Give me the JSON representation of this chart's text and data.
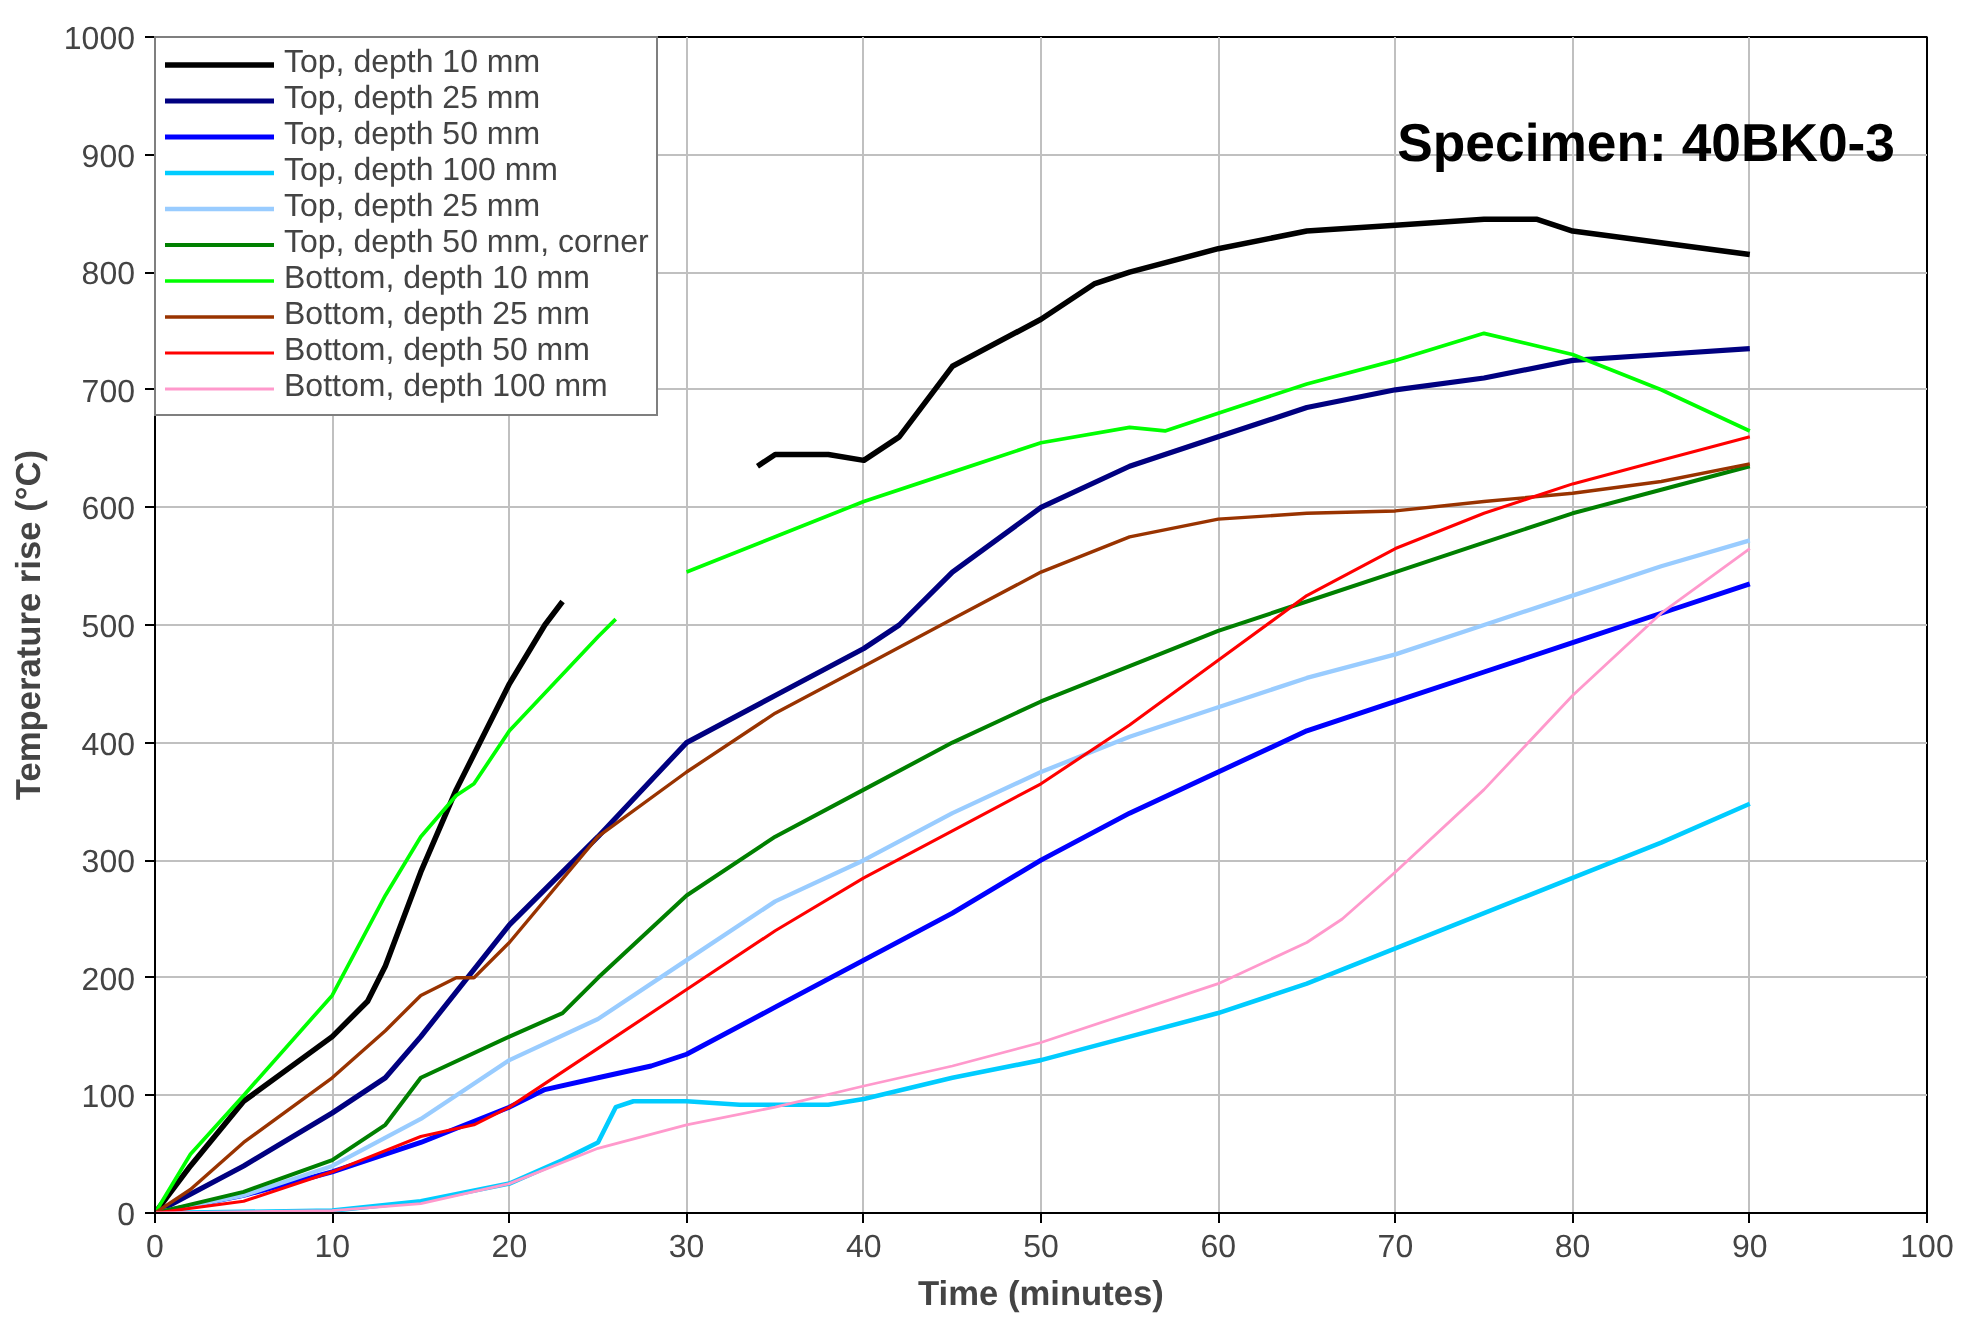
{
  "chart_data": {
    "type": "line",
    "xlabel": "Time (minutes)",
    "ylabel": "Temperature rise (°C)",
    "annotations": [
      "Specimen: 40BK0-3"
    ],
    "xlim": [
      0,
      100
    ],
    "ylim": [
      0,
      1000
    ],
    "xticks": [
      0,
      10,
      20,
      30,
      40,
      50,
      60,
      70,
      80,
      90,
      100
    ],
    "yticks": [
      0,
      100,
      200,
      300,
      400,
      500,
      600,
      700,
      800,
      900,
      1000
    ],
    "grid": true,
    "legend": "top left",
    "marker": "none",
    "line_style": "solid",
    "series": [
      {
        "name": "Top, depth 10 mm",
        "color": "#000000",
        "x": [
          0,
          2,
          5,
          10,
          12,
          13,
          15,
          17,
          20,
          22,
          23,
          27,
          34,
          35,
          38,
          40,
          42,
          45,
          50,
          53,
          55,
          60,
          65,
          70,
          75,
          78,
          80,
          85,
          90
        ],
        "values": [
          0,
          40,
          95,
          150,
          180,
          210,
          290,
          360,
          450,
          500,
          520,
          null,
          635,
          645,
          645,
          640,
          660,
          720,
          760,
          790,
          800,
          820,
          835,
          840,
          845,
          845,
          835,
          825,
          815
        ]
      },
      {
        "name": "Top, depth 25 mm",
        "color": "#000080",
        "x": [
          0,
          5,
          10,
          13,
          15,
          20,
          25,
          30,
          35,
          40,
          42,
          45,
          50,
          55,
          60,
          65,
          70,
          75,
          80,
          85,
          90
        ],
        "values": [
          0,
          40,
          85,
          115,
          150,
          245,
          320,
          400,
          440,
          480,
          500,
          545,
          600,
          635,
          660,
          685,
          700,
          710,
          725,
          730,
          735
        ]
      },
      {
        "name": "Top, depth 50 mm",
        "color": "#0000ff",
        "x": [
          0,
          5,
          10,
          15,
          20,
          22,
          25,
          28,
          30,
          35,
          40,
          45,
          50,
          55,
          60,
          65,
          70,
          75,
          80,
          85,
          90
        ],
        "values": [
          0,
          15,
          35,
          60,
          90,
          105,
          115,
          125,
          135,
          175,
          215,
          255,
          300,
          340,
          375,
          410,
          435,
          460,
          485,
          510,
          535
        ]
      },
      {
        "name": "Top, depth 100 mm",
        "color": "#00ccff",
        "x": [
          0,
          10,
          15,
          20,
          23,
          25,
          26,
          27,
          30,
          33,
          38,
          40,
          45,
          50,
          55,
          60,
          65,
          70,
          75,
          80,
          85,
          90
        ],
        "values": [
          0,
          2,
          10,
          25,
          45,
          60,
          90,
          95,
          95,
          92,
          92,
          97,
          115,
          130,
          150,
          170,
          195,
          225,
          255,
          285,
          315,
          348
        ]
      },
      {
        "name": "Top, depth 25 mm",
        "color": "#99ccff",
        "x": [
          0,
          5,
          10,
          15,
          20,
          25,
          30,
          35,
          40,
          45,
          50,
          55,
          60,
          65,
          70,
          75,
          80,
          85,
          90
        ],
        "values": [
          0,
          15,
          40,
          80,
          130,
          165,
          215,
          265,
          300,
          340,
          375,
          405,
          430,
          455,
          475,
          500,
          525,
          550,
          572
        ]
      },
      {
        "name": "Top, depth 50 mm, corner",
        "color": "#008000",
        "x": [
          0,
          5,
          10,
          13,
          15,
          20,
          23,
          25,
          30,
          35,
          40,
          45,
          50,
          55,
          60,
          65,
          70,
          75,
          80,
          85,
          90
        ],
        "values": [
          0,
          18,
          45,
          75,
          115,
          150,
          170,
          200,
          270,
          320,
          360,
          400,
          435,
          465,
          495,
          520,
          545,
          570,
          595,
          615,
          635
        ]
      },
      {
        "name": "Bottom, depth 10 mm",
        "color": "#00ff00",
        "x": [
          0,
          2,
          5,
          10,
          13,
          15,
          17,
          18,
          20,
          25,
          26,
          28,
          30,
          35,
          40,
          45,
          50,
          55,
          57,
          60,
          65,
          70,
          75,
          80,
          85,
          90
        ],
        "values": [
          0,
          50,
          100,
          185,
          270,
          320,
          355,
          365,
          410,
          490,
          505,
          null,
          545,
          575,
          605,
          630,
          655,
          668,
          665,
          680,
          705,
          725,
          748,
          730,
          700,
          665
        ]
      },
      {
        "name": "Bottom, depth 25 mm",
        "color": "#993300",
        "x": [
          0,
          2,
          5,
          10,
          13,
          15,
          17,
          18,
          20,
          25,
          30,
          35,
          40,
          45,
          50,
          55,
          60,
          65,
          70,
          75,
          80,
          85,
          90
        ],
        "values": [
          0,
          20,
          60,
          115,
          155,
          185,
          200,
          200,
          230,
          320,
          375,
          425,
          465,
          505,
          545,
          575,
          590,
          595,
          597,
          605,
          612,
          622,
          637
        ]
      },
      {
        "name": "Bottom, depth 50 mm",
        "color": "#ff0000",
        "x": [
          0,
          5,
          10,
          15,
          18,
          20,
          25,
          30,
          35,
          40,
          45,
          50,
          55,
          60,
          65,
          70,
          75,
          80,
          85,
          90
        ],
        "values": [
          0,
          10,
          35,
          65,
          75,
          90,
          140,
          190,
          240,
          285,
          325,
          365,
          415,
          470,
          525,
          565,
          595,
          620,
          640,
          660
        ]
      },
      {
        "name": "Bottom, depth 100 mm",
        "color": "#ff99cc",
        "x": [
          0,
          10,
          15,
          20,
          25,
          30,
          35,
          40,
          45,
          50,
          55,
          60,
          65,
          67,
          70,
          75,
          80,
          85,
          90
        ],
        "values": [
          0,
          2,
          8,
          25,
          55,
          75,
          90,
          108,
          125,
          145,
          170,
          195,
          230,
          250,
          290,
          360,
          440,
          510,
          565
        ]
      }
    ]
  }
}
